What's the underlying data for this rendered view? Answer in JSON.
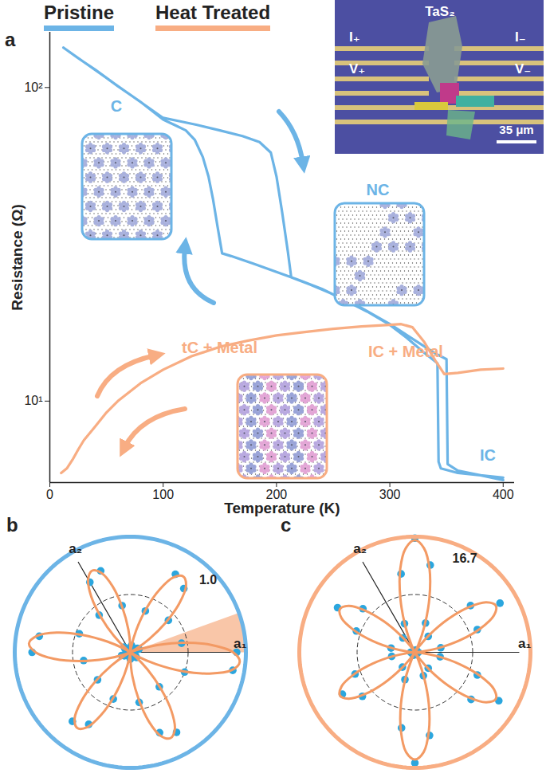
{
  "chart_data": [
    {
      "type": "line",
      "panel_label": "a",
      "xlabel": "Temperature (K)",
      "ylabel": "Resistance (Ω)",
      "log": "y",
      "grid": false,
      "legend": "top-left",
      "xlim": [
        0,
        410
      ],
      "xticks": [
        0,
        100,
        200,
        300,
        400
      ],
      "ylim": [
        5.5,
        150
      ],
      "yticks": [
        {
          "value": 10,
          "label": "10¹"
        },
        {
          "value": 100,
          "label": "10²"
        }
      ],
      "series": [
        {
          "name": "Pristine",
          "color": "#6cb4e6",
          "line_style": "solid",
          "x": [
            400,
            380,
            360,
            345,
            343,
            342,
            330,
            315,
            300,
            280,
            260,
            240,
            220,
            200,
            180,
            160,
            152,
            148,
            144,
            140,
            135,
            128,
            120,
            110,
            100,
            80,
            60,
            40,
            25,
            12,
            100,
            115,
            130,
            150,
            170,
            185,
            195,
            200,
            205,
            210,
            213,
            230,
            250,
            270,
            300,
            320,
            340,
            350,
            351,
            360,
            380,
            400
          ],
          "values": [
            5.7,
            5.8,
            5.9,
            6.1,
            6.4,
            13.2,
            14.3,
            15.9,
            17.5,
            19.3,
            21,
            22.8,
            24.3,
            25.8,
            27.4,
            29,
            29.6,
            36,
            44,
            52,
            60,
            68,
            73,
            76,
            79,
            90,
            101,
            114,
            124,
            134,
            80,
            78,
            76,
            73,
            70,
            67,
            62,
            52,
            40,
            30,
            24.8,
            23.5,
            21.9,
            20.3,
            17.6,
            15.8,
            14.2,
            13.6,
            6.3,
            6.0,
            5.8,
            5.6
          ]
        },
        {
          "name": "Heat Treated",
          "color": "#f8ad83",
          "line_style": "solid",
          "x": [
            10,
            15,
            20,
            25,
            30,
            40,
            50,
            60,
            80,
            100,
            125,
            150,
            175,
            200,
            225,
            250,
            275,
            300,
            310,
            320,
            330,
            340,
            348,
            360,
            380,
            400
          ],
          "values": [
            5.9,
            6.1,
            6.5,
            7.0,
            7.5,
            8.3,
            9.2,
            10.0,
            11.4,
            12.6,
            13.9,
            14.9,
            15.6,
            16.2,
            16.6,
            17.0,
            17.3,
            17.5,
            17.6,
            17.2,
            15.5,
            13.5,
            12.2,
            12.3,
            12.6,
            12.7
          ]
        }
      ],
      "annotations": [
        {
          "text": "C",
          "color": "#6cb4e6"
        },
        {
          "text": "NC",
          "color": "#6cb4e6"
        },
        {
          "text": "IC",
          "color": "#6cb4e6"
        },
        {
          "text": "tC + Metal",
          "color": "#f8ad83"
        },
        {
          "text": "IC + Metal",
          "color": "#f8ad83"
        }
      ],
      "inset": {
        "labels": [
          "TaS₂",
          "I₊",
          "V₊",
          "I₋",
          "V₋"
        ],
        "scale_bar": "35 μm"
      }
    },
    {
      "type": "polar",
      "panel_label": "b",
      "color": "#6cb4e6",
      "rlim": [
        0,
        1
      ],
      "rticks": [
        {
          "value": 1,
          "label": "1.0"
        }
      ],
      "axes": [
        {
          "label": "a₁",
          "angle": 0
        },
        {
          "label": "a₂",
          "angle": 120
        }
      ],
      "shaded_sector": [
        0,
        20
      ],
      "series": [
        {
          "type": "scatter",
          "marker": "circle",
          "color": "#2ba6de",
          "x": [
            0,
            10,
            20,
            30,
            40,
            50,
            60,
            70,
            80,
            90,
            100,
            110,
            120,
            130,
            140,
            150,
            160,
            170,
            180,
            190,
            200,
            210,
            220,
            230,
            240,
            250,
            260,
            270,
            280,
            290,
            300,
            310,
            320,
            330,
            340,
            350
          ],
          "values": [
            0.92,
            0.45,
            0.08,
            0.07,
            0.43,
            0.72,
            0.78,
            0.38,
            0.06,
            0.04,
            0.41,
            0.75,
            0.7,
            0.42,
            0.07,
            0.05,
            0.47,
            0.8,
            0.85,
            0.41,
            0.08,
            0.06,
            0.37,
            0.78,
            0.72,
            0.43,
            0.03,
            0.06,
            0.44,
            0.74,
            0.8,
            0.39,
            0.07,
            0.05,
            0.5,
            0.9
          ]
        },
        {
          "type": "line",
          "line_style": "solid",
          "color": "#f39a64",
          "x": [
            0,
            5,
            10,
            15,
            20,
            25,
            30,
            35,
            40,
            45,
            50,
            55,
            60,
            65,
            70,
            75,
            80,
            85,
            90,
            95,
            100,
            105,
            110,
            115,
            120,
            125,
            130,
            135,
            140,
            145,
            150,
            155,
            160,
            165,
            170,
            175,
            180,
            185,
            190,
            195,
            200,
            205,
            210,
            215,
            220,
            225,
            230,
            235,
            240,
            245,
            250,
            255,
            260,
            265,
            270,
            275,
            280,
            285,
            290,
            295,
            300,
            305,
            310,
            315,
            320,
            325,
            330,
            335,
            340,
            345,
            350,
            355
          ],
          "values": [
            0.89,
            0.71,
            0.48,
            0.24,
            0.06,
            0,
            0.05,
            0.2,
            0.4,
            0.6,
            0.75,
            0.8,
            0.75,
            0.6,
            0.4,
            0.2,
            0.05,
            0,
            0.05,
            0.2,
            0.39,
            0.59,
            0.73,
            0.78,
            0.73,
            0.59,
            0.39,
            0.2,
            0.05,
            0,
            0.06,
            0.22,
            0.44,
            0.66,
            0.82,
            0.88,
            0.82,
            0.66,
            0.44,
            0.22,
            0.06,
            0,
            0.05,
            0.2,
            0.4,
            0.6,
            0.75,
            0.8,
            0.75,
            0.6,
            0.4,
            0.2,
            0.05,
            0,
            0.05,
            0.21,
            0.41,
            0.62,
            0.77,
            0.82,
            0.77,
            0.62,
            0.41,
            0.21,
            0.06,
            0,
            0.06,
            0.24,
            0.48,
            0.71,
            0.89,
            0.95
          ]
        }
      ]
    },
    {
      "type": "polar",
      "panel_label": "c",
      "color": "#f8ad83",
      "rlim": [
        0,
        16.7
      ],
      "rticks": [
        16.7
      ],
      "axes": [
        {
          "label": "a₁",
          "angle": 0
        },
        {
          "label": "a₂",
          "angle": 120
        }
      ],
      "series": [
        {
          "type": "scatter",
          "marker": "circle",
          "color": "#2ba6de",
          "x": [
            0,
            10,
            20,
            30,
            40,
            50,
            60,
            70,
            80,
            90,
            100,
            110,
            120,
            130,
            140,
            150,
            160,
            170,
            180,
            190,
            200,
            210,
            220,
            230,
            240,
            250,
            260,
            270,
            280,
            290,
            300,
            310,
            320,
            330,
            340,
            350
          ],
          "values": [
            0.5,
            3.8,
            9.6,
            14.2,
            10.5,
            3,
            0.4,
            4.5,
            12.8,
            16.5,
            11.5,
            4.4,
            0.3,
            2.7,
            9.8,
            12.9,
            9,
            3.5,
            0.6,
            3.4,
            9.2,
            12.1,
            9.9,
            2.8,
            0.5,
            4.2,
            11.1,
            16,
            12.2,
            3.6,
            0.4,
            3,
            10.6,
            14,
            9.6,
            3.7
          ]
        },
        {
          "type": "line",
          "line_style": "solid",
          "color": "#f39a64",
          "x": [
            0,
            5,
            10,
            15,
            20,
            25,
            30,
            35,
            40,
            45,
            50,
            55,
            60,
            65,
            70,
            75,
            80,
            85,
            90,
            95,
            100,
            105,
            110,
            115,
            120,
            125,
            130,
            135,
            140,
            145,
            150,
            155,
            160,
            165,
            170,
            175,
            180,
            185,
            190,
            195,
            200,
            205,
            210,
            215,
            220,
            225,
            230,
            235,
            240,
            245,
            250,
            255,
            260,
            265,
            270,
            275,
            280,
            285,
            290,
            295,
            300,
            305,
            310,
            315,
            320,
            325,
            330,
            335,
            340,
            345,
            350,
            355
          ],
          "values": [
            0,
            0.9,
            3.4,
            6.8,
            10.1,
            12.6,
            13.5,
            12.6,
            10.1,
            6.8,
            3.4,
            0.9,
            0,
            1.1,
            4.1,
            8.1,
            12.2,
            15.1,
            16.2,
            15.1,
            12.2,
            8.1,
            4.1,
            1.1,
            0,
            0.8,
            3.1,
            6.3,
            9.4,
            11.7,
            12.5,
            11.7,
            9.4,
            6.3,
            3.1,
            0.8,
            0,
            0.8,
            3.1,
            6.3,
            9.4,
            11.7,
            12.5,
            11.7,
            9.4,
            6.3,
            3.1,
            0.8,
            0,
            1,
            3.9,
            7.8,
            11.6,
            14.5,
            15.5,
            14.5,
            11.6,
            7.8,
            3.9,
            1,
            0,
            0.9,
            3.4,
            6.8,
            10.1,
            12.6,
            13.5,
            12.6,
            10.1,
            6.8,
            3.4,
            0.9
          ]
        }
      ]
    }
  ]
}
